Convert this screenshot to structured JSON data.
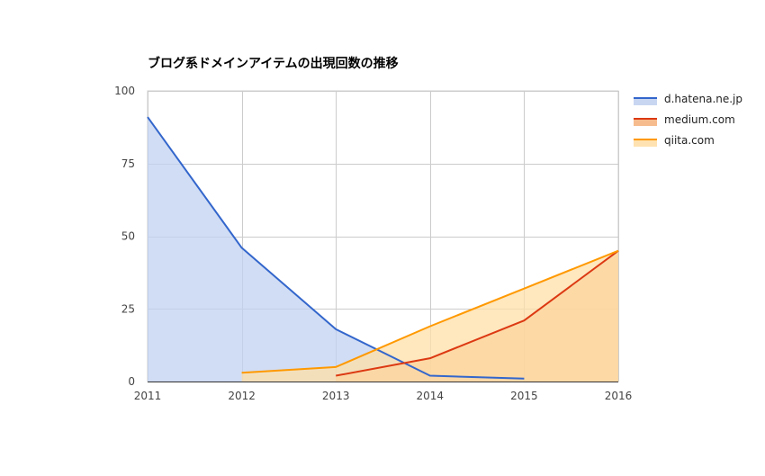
{
  "chart_data": {
    "type": "area",
    "title": "ブログ系ドメインアイテムの出現回数の推移",
    "xlabel": "",
    "ylabel": "",
    "x": [
      2011,
      2012,
      2013,
      2014,
      2015,
      2016
    ],
    "xlim": [
      2011,
      2016
    ],
    "ylim": [
      0,
      100
    ],
    "yticks": [
      0,
      25,
      50,
      75,
      100
    ],
    "xticks": [
      2011,
      2012,
      2013,
      2014,
      2015,
      2016
    ],
    "grid": true,
    "stacked": false,
    "legend_position": "right",
    "series": [
      {
        "name": "d.hatena.ne.jp",
        "color": "#3366cc",
        "fill": "#c2d1f0",
        "points": [
          [
            2011,
            91
          ],
          [
            2012,
            46
          ],
          [
            2013,
            18
          ],
          [
            2014,
            2
          ],
          [
            2015,
            1
          ]
        ]
      },
      {
        "name": "medium.com",
        "color": "#dc3912",
        "fill": "#f5b581",
        "points": [
          [
            2013,
            2
          ],
          [
            2014,
            8
          ],
          [
            2015,
            21
          ],
          [
            2016,
            45
          ]
        ]
      },
      {
        "name": "qiita.com",
        "color": "#ff9900",
        "fill": "#ffdfa8",
        "points": [
          [
            2012,
            3
          ],
          [
            2013,
            5
          ],
          [
            2014,
            19
          ],
          [
            2015,
            32
          ],
          [
            2016,
            45
          ]
        ]
      }
    ]
  }
}
